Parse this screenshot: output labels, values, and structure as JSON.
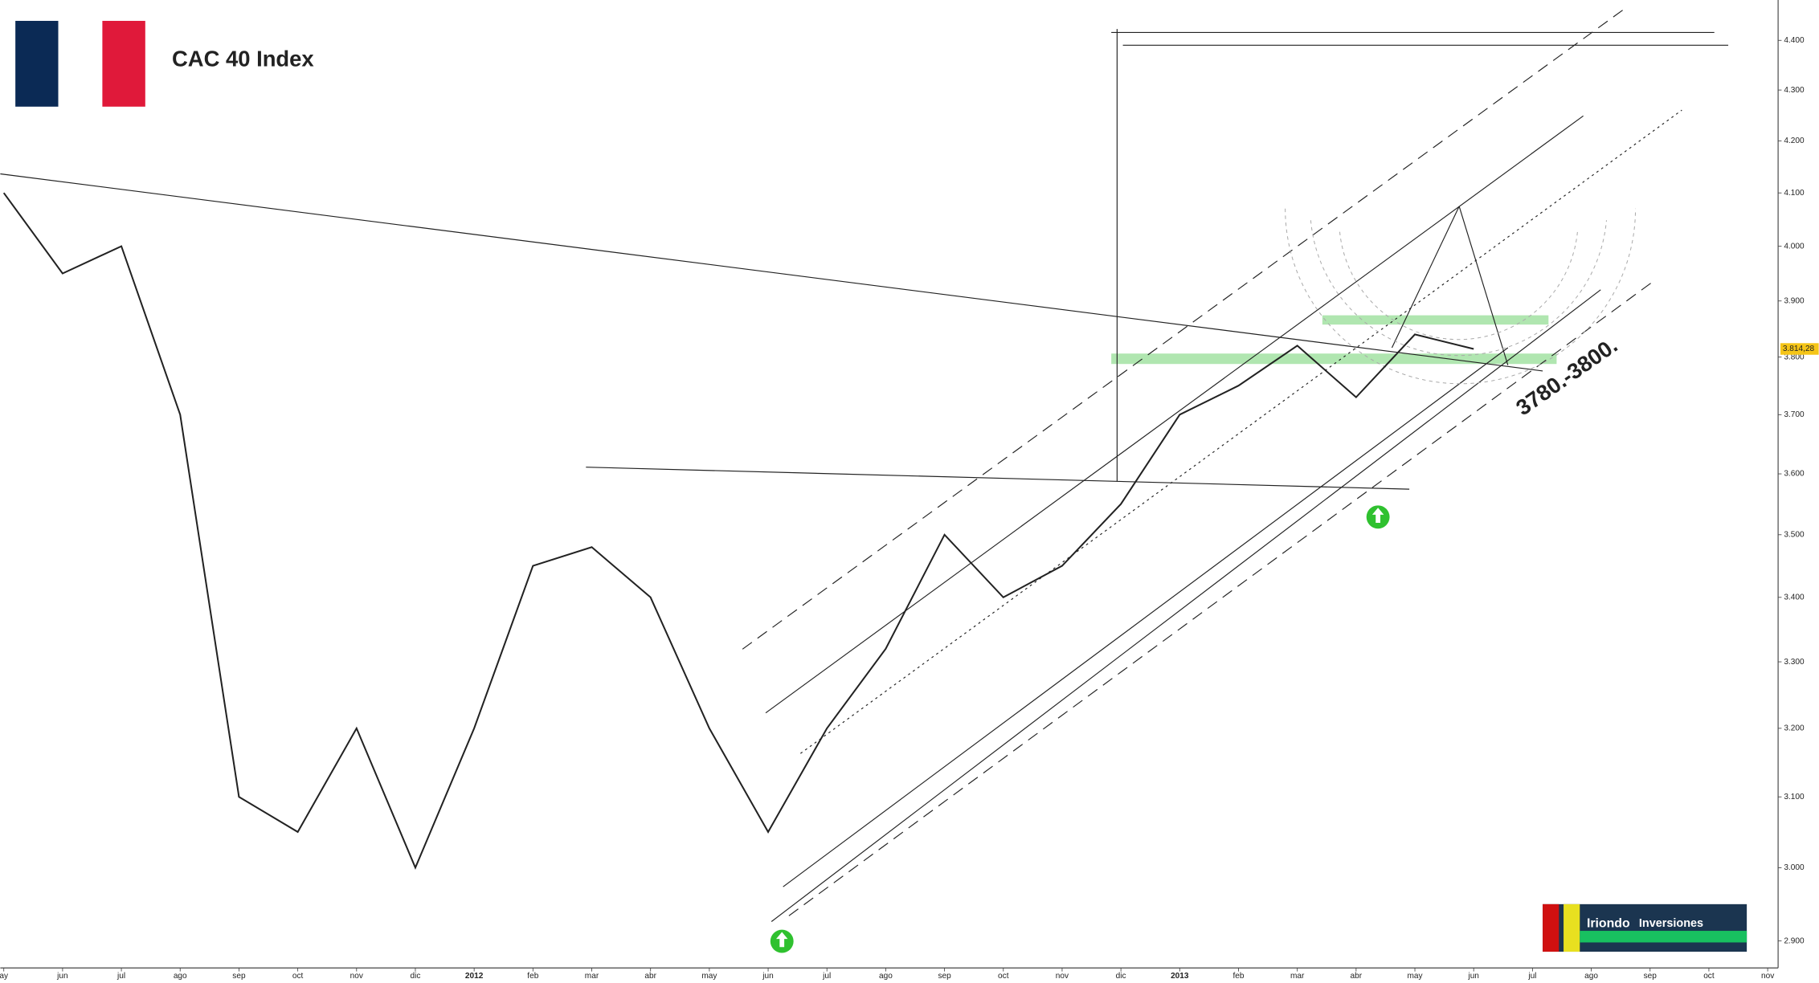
{
  "chart_data": {
    "type": "line",
    "title": "CAC 40 Index",
    "annotation": "3780.-3800.",
    "logo": {
      "left": "Iriondo",
      "right": "Inversiones"
    },
    "categories": [
      "ay",
      "jun",
      "jul",
      "ago",
      "sep",
      "oct",
      "nov",
      "dic",
      "2012",
      "feb",
      "mar",
      "abr",
      "may",
      "jun",
      "jul",
      "ago",
      "sep",
      "oct",
      "nov",
      "dic",
      "2013",
      "feb",
      "mar",
      "abr",
      "may",
      "jun",
      "jul",
      "ago",
      "sep",
      "oct",
      "nov"
    ],
    "series": [
      {
        "name": "CAC 40",
        "color": "#222222",
        "values": [
          4100,
          3950,
          4000,
          3700,
          3100,
          3050,
          3200,
          3000,
          3200,
          3450,
          3480,
          3400,
          3200,
          3050,
          3200,
          3320,
          3500,
          3400,
          3450,
          3550,
          3700,
          3750,
          3820,
          3730,
          3840,
          3814.28,
          null,
          null,
          null,
          null,
          null
        ]
      }
    ],
    "last_price": {
      "value": 3814.28,
      "label": "3.814,28"
    },
    "log": true,
    "ylim": [
      2864,
      4483
    ],
    "yticks": [
      {
        "value": 2900,
        "label": "2.900"
      },
      {
        "value": 3000,
        "label": "3.000"
      },
      {
        "value": 3100,
        "label": "3.100"
      },
      {
        "value": 3200,
        "label": "3.200"
      },
      {
        "value": 3300,
        "label": "3.300"
      },
      {
        "value": 3400,
        "label": "3.400"
      },
      {
        "value": 3500,
        "label": "3.500"
      },
      {
        "value": 3600,
        "label": "3.600"
      },
      {
        "value": 3700,
        "label": "3.700"
      },
      {
        "value": 3800,
        "label": "3.800"
      },
      {
        "value": 3900,
        "label": "3.900"
      },
      {
        "value": 4000,
        "label": "4.000"
      },
      {
        "value": 4100,
        "label": "4.100"
      },
      {
        "value": 4200,
        "label": "4.200"
      },
      {
        "value": 4300,
        "label": "4.300"
      },
      {
        "value": 4400,
        "label": "4.400"
      }
    ],
    "grid": false
  }
}
